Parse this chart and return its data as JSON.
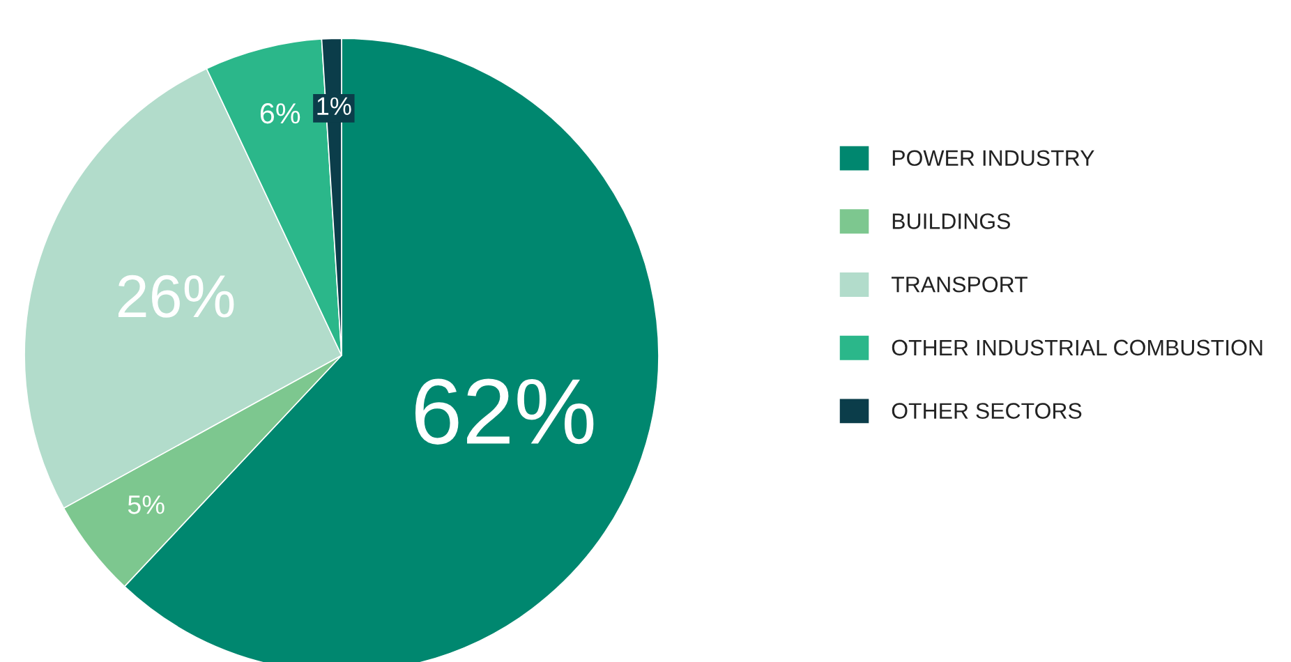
{
  "chart_data": {
    "type": "pie",
    "categories": [
      "POWER INDUSTRY",
      "BUILDINGS",
      "TRANSPORT",
      "OTHER INDUSTRIAL COMBUSTION",
      "OTHER SECTORS"
    ],
    "values": [
      62,
      5,
      26,
      6,
      1
    ],
    "colors": [
      "#00876f",
      "#7dc78f",
      "#b2dccb",
      "#2bb78a",
      "#0b3d4a"
    ],
    "value_labels": [
      "62%",
      "5%",
      "26%",
      "6%",
      "1%"
    ],
    "legend": "right"
  }
}
